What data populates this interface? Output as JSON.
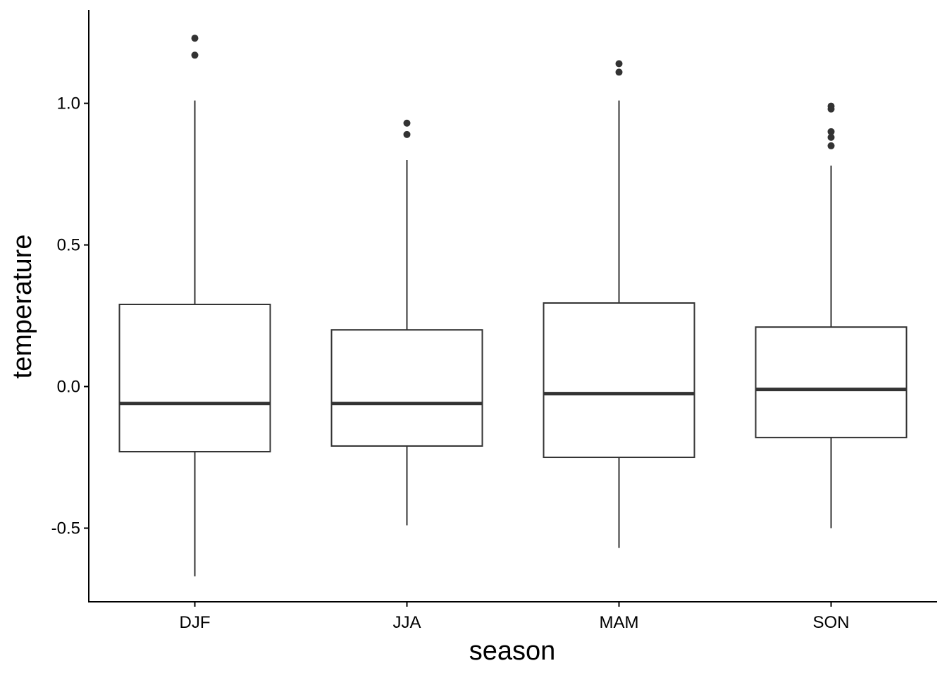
{
  "chart_data": {
    "type": "boxplot",
    "title": "",
    "xlabel": "season",
    "ylabel": "temperature",
    "ylim": [
      -0.76,
      1.33
    ],
    "yticks": [
      -0.5,
      0.0,
      0.5,
      1.0
    ],
    "ytick_labels": [
      "-0.5",
      "0.0",
      "0.5",
      "1.0"
    ],
    "grid": false,
    "legend": "none",
    "colors": {
      "stroke": "#333333",
      "axis": "#000000",
      "outlier": "#333333",
      "background": "#ffffff"
    },
    "categories": [
      "DJF",
      "JJA",
      "MAM",
      "SON"
    ],
    "boxes": [
      {
        "category": "DJF",
        "whisker_low": -0.67,
        "q1": -0.23,
        "median": -0.06,
        "q3": 0.29,
        "whisker_high": 1.01,
        "outliers": [
          1.17,
          1.23
        ]
      },
      {
        "category": "JJA",
        "whisker_low": -0.49,
        "q1": -0.21,
        "median": -0.06,
        "q3": 0.2,
        "whisker_high": 0.8,
        "outliers": [
          0.89,
          0.93
        ]
      },
      {
        "category": "MAM",
        "whisker_low": -0.57,
        "q1": -0.25,
        "median": -0.025,
        "q3": 0.295,
        "whisker_high": 1.01,
        "outliers": [
          1.11,
          1.14
        ]
      },
      {
        "category": "SON",
        "whisker_low": -0.5,
        "q1": -0.18,
        "median": -0.01,
        "q3": 0.21,
        "whisker_high": 0.78,
        "outliers": [
          0.85,
          0.88,
          0.9,
          0.98,
          0.99
        ]
      }
    ]
  }
}
